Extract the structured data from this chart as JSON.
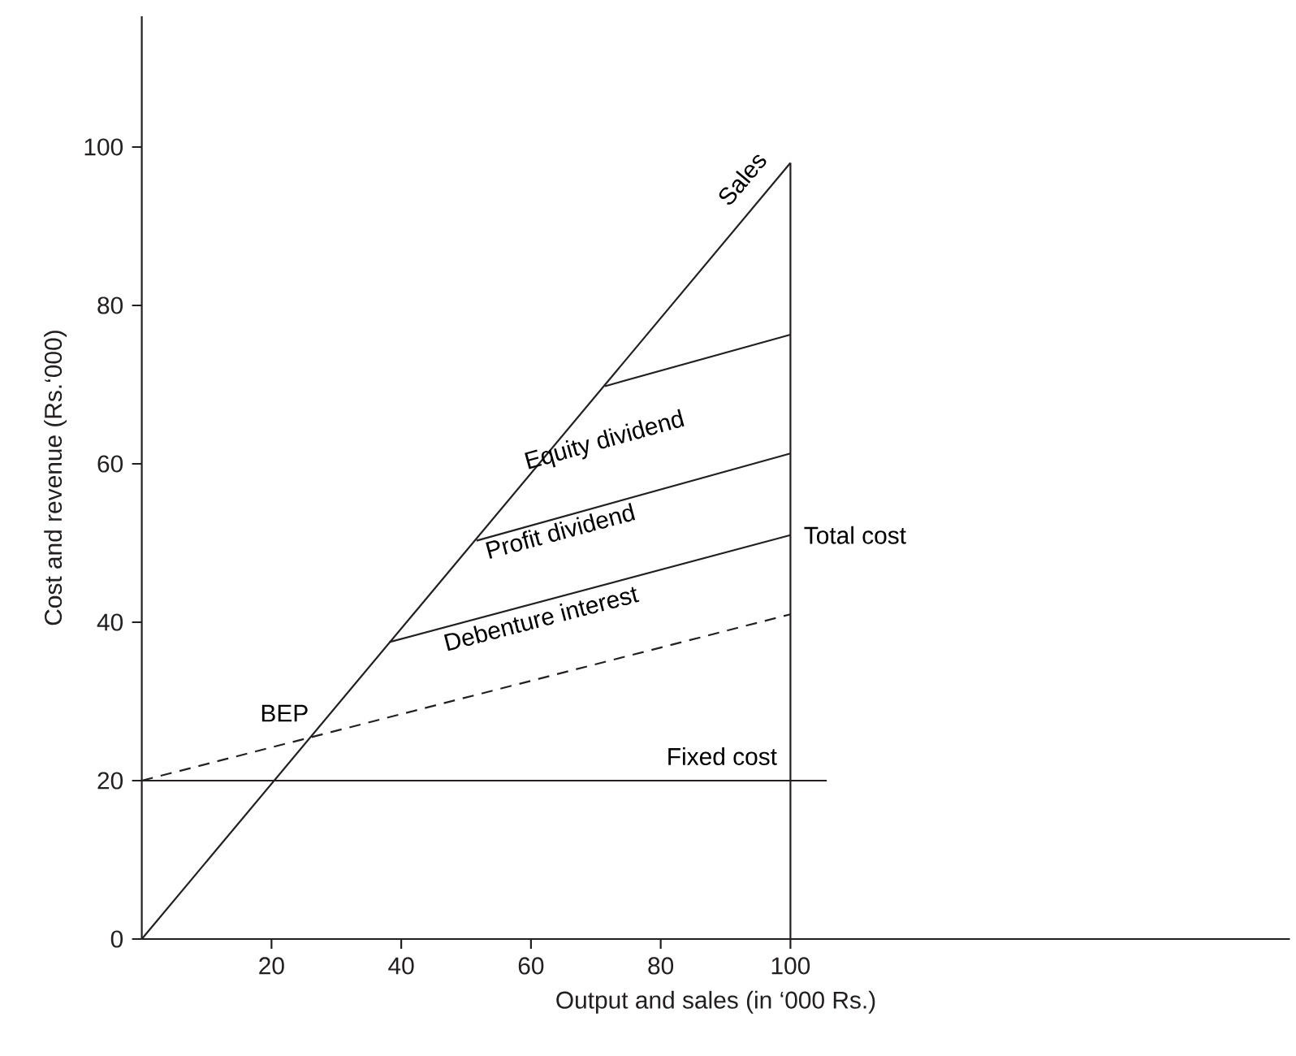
{
  "chart_data": {
    "type": "line",
    "xlabel": "Output and sales (in ‘000 Rs.)",
    "ylabel": "Cost and revenue (Rs.‘000)",
    "xlim": [
      0,
      177
    ],
    "ylim": [
      0,
      116.5
    ],
    "xticks": [
      20,
      40,
      60,
      80,
      100
    ],
    "yticks": [
      0,
      20,
      40,
      60,
      80,
      100
    ],
    "marker": "none",
    "color": "#231f20",
    "series": [
      {
        "x": [
          0,
          100
        ],
        "values": [
          0,
          98
        ]
      },
      {
        "x": [
          0,
          105.6
        ],
        "values": [
          20,
          20
        ]
      },
      {
        "x": [
          0,
          100
        ],
        "values": [
          20,
          41
        ],
        "line_style": "dashed"
      },
      {
        "x": [
          38.2,
          100
        ],
        "values": [
          37.5,
          51
        ]
      },
      {
        "x": [
          51.6,
          100
        ],
        "values": [
          50.3,
          61.3
        ]
      },
      {
        "x": [
          71.4,
          100
        ],
        "values": [
          69.8,
          76.3
        ]
      },
      {
        "x": [
          100,
          100
        ],
        "values": [
          0,
          98
        ]
      }
    ],
    "annotations": [
      "Sales",
      "Equity dividend",
      "Profit dividend",
      "Total cost",
      "Debenture interest",
      "BEP",
      "Fixed cost"
    ]
  }
}
